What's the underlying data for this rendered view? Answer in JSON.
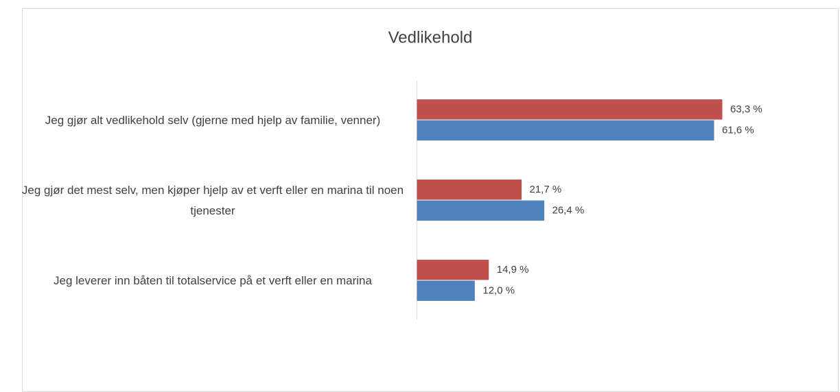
{
  "chart_data": {
    "type": "bar",
    "orientation": "horizontal",
    "title": "Vedlikehold",
    "categories": [
      "Jeg gjør alt vedlikehold selv (gjerne med hjelp av familie, venner)",
      "Jeg gjør det mest selv, men kjøper hjelp av et verft eller en marina til noen tjenester",
      "Jeg leverer inn båten til totalservice på et verft eller en marina"
    ],
    "series": [
      {
        "color": "#c0504d",
        "values": [
          63.3,
          21.7,
          14.9
        ],
        "value_labels": [
          "63,3 %",
          "21,7 %",
          "14,9 %"
        ]
      },
      {
        "color": "#4f81bd",
        "values": [
          61.6,
          26.4,
          12.0
        ],
        "value_labels": [
          "61,6 %",
          "26,4 %",
          "12,0 %"
        ]
      }
    ]
  }
}
